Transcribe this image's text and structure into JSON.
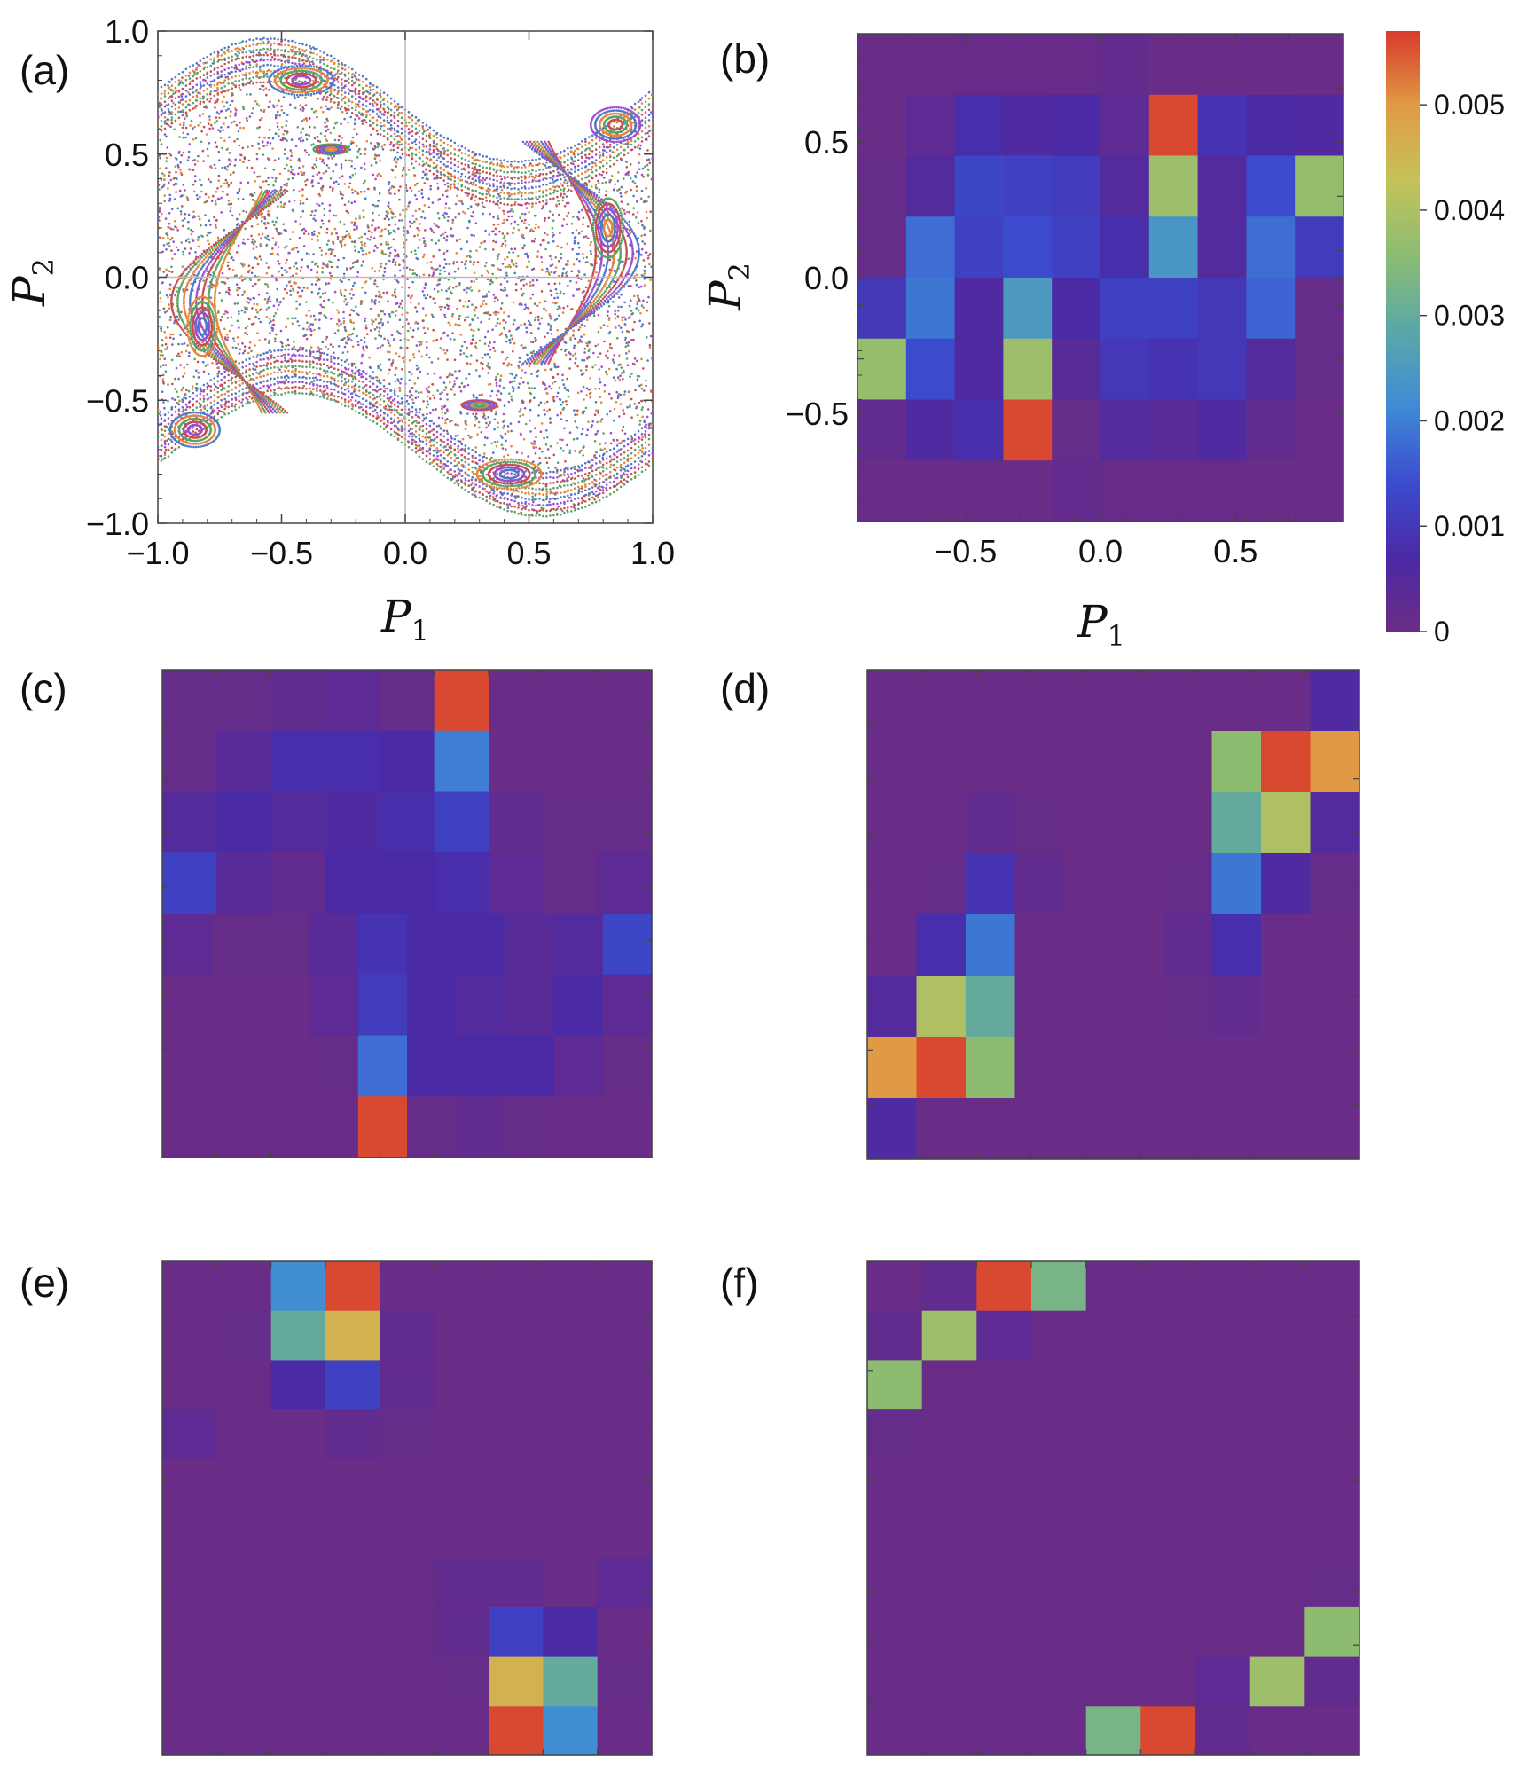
{
  "chart_data": [
    {
      "id": "a",
      "panel_label": "(a)",
      "type": "scatter",
      "title": "",
      "xlabel": "P",
      "xlabel_sub": "1",
      "ylabel": "P",
      "ylabel_sub": "2",
      "xlim": [
        -1,
        1
      ],
      "ylim": [
        -1,
        1
      ],
      "xticks": [
        -1.0,
        -0.5,
        0.0,
        0.5,
        1.0
      ],
      "xtick_labels": [
        "−1.0",
        "−0.5",
        "0.0",
        "0.5",
        "1.0"
      ],
      "yticks": [
        -1.0,
        -0.5,
        0.0,
        0.5,
        1.0
      ],
      "ytick_labels": [
        "−1.0",
        "−0.5",
        "0.0",
        "0.5",
        "1.0"
      ],
      "series_colors": [
        "#4e79c9",
        "#e8863a",
        "#5aa469",
        "#c94f4f",
        "#9b4fd6"
      ],
      "islands": [
        {
          "cx": -0.42,
          "cy": 0.8,
          "rx": 0.13,
          "ry": 0.06
        },
        {
          "cx": 0.42,
          "cy": -0.8,
          "rx": 0.13,
          "ry": 0.06
        },
        {
          "cx": -0.3,
          "cy": 0.52,
          "rx": 0.07,
          "ry": 0.02
        },
        {
          "cx": 0.3,
          "cy": -0.52,
          "rx": 0.07,
          "ry": 0.02
        },
        {
          "cx": 0.85,
          "cy": 0.62,
          "rx": 0.1,
          "ry": 0.07
        },
        {
          "cx": -0.85,
          "cy": -0.62,
          "rx": 0.1,
          "ry": 0.07
        },
        {
          "cx": -0.82,
          "cy": -0.2,
          "rx": 0.06,
          "ry": 0.12
        },
        {
          "cx": 0.82,
          "cy": 0.2,
          "rx": 0.06,
          "ry": 0.12
        }
      ]
    },
    {
      "id": "b",
      "panel_label": "(b)",
      "type": "heatmap",
      "xlabel": "P",
      "xlabel_sub": "1",
      "ylabel": "P",
      "ylabel_sub": "2",
      "xlim": [
        -0.9,
        0.9
      ],
      "ylim": [
        -0.9,
        0.9
      ],
      "xticks": [
        -0.5,
        0.0,
        0.5
      ],
      "xtick_labels": [
        "−0.5",
        "0.0",
        "0.5"
      ],
      "yticks": [
        -0.5,
        0.0,
        0.5
      ],
      "ytick_labels": [
        "−0.5",
        "0.0",
        "0.5"
      ],
      "values_top_to_bottom": [
        [
          5e-05,
          5e-05,
          8e-05,
          8e-05,
          8e-05,
          0.00018,
          5e-05,
          5e-05,
          5e-05,
          5e-05
        ],
        [
          5e-05,
          0.0003,
          0.0008,
          0.0006,
          0.0007,
          0.0003,
          0.0056,
          0.0009,
          0.0007,
          0.0006
        ],
        [
          0.0001,
          0.0005,
          0.0013,
          0.0012,
          0.0011,
          0.0005,
          0.0038,
          0.0005,
          0.0014,
          0.0037
        ],
        [
          0.0001,
          0.0018,
          0.0012,
          0.0014,
          0.0012,
          0.0008,
          0.0024,
          0.0005,
          0.0018,
          0.0011
        ],
        [
          0.001,
          0.0019,
          0.0006,
          0.0025,
          0.0007,
          0.0012,
          0.0012,
          0.001,
          0.0017,
          0.0001
        ],
        [
          0.0037,
          0.0014,
          0.0006,
          0.0038,
          0.0004,
          0.001,
          0.0009,
          0.001,
          0.0005,
          0.0001
        ],
        [
          0.0002,
          0.0006,
          0.0008,
          0.0056,
          0.0001,
          0.0005,
          0.0004,
          0.0006,
          0.0002,
          5e-05
        ],
        [
          5e-05,
          5e-05,
          5e-05,
          5e-05,
          0.00018,
          8e-05,
          8e-05,
          8e-05,
          5e-05,
          5e-05
        ]
      ]
    },
    {
      "id": "c",
      "panel_label": "(c)",
      "type": "heatmap",
      "values_top_to_bottom": [
        [
          0.0001,
          0.0001,
          0.0002,
          0.0003,
          0.0001,
          0.0056,
          5e-05,
          5e-05,
          5e-05
        ],
        [
          0.0001,
          0.0004,
          0.0008,
          0.0008,
          0.0007,
          0.002,
          5e-05,
          5e-05,
          5e-05
        ],
        [
          0.0005,
          0.0007,
          0.0005,
          0.0006,
          0.0008,
          0.0012,
          0.0002,
          0.0001,
          0.0001
        ],
        [
          0.0012,
          0.0004,
          0.0002,
          0.0007,
          0.0007,
          0.0008,
          0.0003,
          0.0001,
          0.0003
        ],
        [
          0.0003,
          0.0001,
          0.0001,
          0.0004,
          0.0009,
          0.0007,
          0.0007,
          0.0004,
          0.0005,
          0.0013
        ],
        [
          5e-05,
          5e-05,
          5e-05,
          0.0003,
          0.0011,
          0.0007,
          0.0005,
          0.0004,
          0.0007,
          0.0003
        ],
        [
          5e-05,
          5e-05,
          5e-05,
          0.0001,
          0.0018,
          0.0007,
          0.0007,
          0.0007,
          0.0003,
          0.0001
        ],
        [
          5e-05,
          5e-05,
          5e-05,
          5e-05,
          0.0056,
          0.0001,
          0.0002,
          0.0001,
          5e-05,
          5e-05
        ]
      ]
    },
    {
      "id": "d",
      "panel_label": "(d)",
      "type": "heatmap",
      "values_top_to_bottom": [
        [
          5e-05,
          5e-05,
          5e-05,
          5e-05,
          5e-05,
          5e-05,
          5e-05,
          5e-05,
          5e-05,
          0.0006
        ],
        [
          5e-05,
          5e-05,
          5e-05,
          5e-05,
          5e-05,
          5e-05,
          5e-05,
          0.0036,
          0.0056,
          0.005
        ],
        [
          5e-05,
          5e-05,
          0.0002,
          0.0001,
          5e-05,
          5e-05,
          5e-05,
          0.003,
          0.004,
          0.0005
        ],
        [
          5e-05,
          0.0001,
          0.0009,
          0.0002,
          5e-05,
          5e-05,
          0.0001,
          0.0019,
          0.0006,
          0.0001
        ],
        [
          5e-05,
          0.0008,
          0.0019,
          5e-05,
          5e-05,
          5e-05,
          0.0002,
          0.0008,
          5e-05,
          5e-05
        ],
        [
          0.0005,
          0.004,
          0.003,
          5e-05,
          5e-05,
          5e-05,
          0.0001,
          0.0002,
          5e-05,
          5e-05
        ],
        [
          0.005,
          0.0056,
          0.0036,
          5e-05,
          5e-05,
          5e-05,
          5e-05,
          5e-05,
          5e-05,
          5e-05
        ],
        [
          0.0006,
          5e-05,
          5e-05,
          5e-05,
          5e-05,
          5e-05,
          5e-05,
          5e-05,
          5e-05,
          5e-05
        ]
      ]
    },
    {
      "id": "e",
      "panel_label": "(e)",
      "type": "heatmap",
      "values_top_to_bottom": [
        [
          5e-05,
          5e-05,
          0.0022,
          0.0056,
          5e-05,
          5e-05,
          5e-05,
          5e-05,
          5e-05
        ],
        [
          5e-05,
          0.0001,
          0.003,
          0.0046,
          0.0002,
          5e-05,
          5e-05,
          5e-05,
          5e-05
        ],
        [
          5e-05,
          5e-05,
          0.0007,
          0.0012,
          0.0002,
          5e-05,
          5e-05,
          5e-05,
          5e-05
        ],
        [
          0.0003,
          5e-05,
          5e-05,
          0.0002,
          0.0001,
          5e-05,
          5e-05,
          5e-05,
          5e-05
        ],
        [
          5e-05,
          5e-05,
          5e-05,
          5e-05,
          5e-05,
          5e-05,
          5e-05,
          5e-05,
          5e-05
        ],
        [
          5e-05,
          5e-05,
          5e-05,
          5e-05,
          5e-05,
          5e-05,
          5e-05,
          5e-05,
          5e-05
        ],
        [
          5e-05,
          5e-05,
          5e-05,
          5e-05,
          5e-05,
          0.0002,
          0.0002,
          5e-05,
          0.0003
        ],
        [
          5e-05,
          5e-05,
          5e-05,
          5e-05,
          5e-05,
          0.0002,
          0.0012,
          0.0007,
          5e-05
        ],
        [
          5e-05,
          5e-05,
          5e-05,
          5e-05,
          5e-05,
          0.0001,
          0.0046,
          0.003,
          0.0001
        ],
        [
          5e-05,
          5e-05,
          5e-05,
          5e-05,
          5e-05,
          5e-05,
          0.0056,
          0.0022,
          5e-05
        ]
      ]
    },
    {
      "id": "f",
      "panel_label": "(f)",
      "type": "heatmap",
      "values_top_to_bottom": [
        [
          5e-05,
          0.0002,
          0.0056,
          0.0033,
          5e-05,
          5e-05,
          5e-05,
          5e-05,
          5e-05
        ],
        [
          0.0002,
          0.0038,
          0.0003,
          5e-05,
          5e-05,
          5e-05,
          5e-05,
          5e-05,
          5e-05
        ],
        [
          0.0036,
          5e-05,
          5e-05,
          5e-05,
          5e-05,
          5e-05,
          5e-05,
          5e-05,
          5e-05
        ],
        [
          0.0001,
          5e-05,
          5e-05,
          5e-05,
          5e-05,
          5e-05,
          5e-05,
          5e-05,
          5e-05
        ],
        [
          5e-05,
          5e-05,
          5e-05,
          5e-05,
          5e-05,
          5e-05,
          5e-05,
          5e-05,
          5e-05
        ],
        [
          5e-05,
          5e-05,
          5e-05,
          5e-05,
          5e-05,
          5e-05,
          5e-05,
          5e-05,
          5e-05
        ],
        [
          5e-05,
          5e-05,
          5e-05,
          5e-05,
          5e-05,
          5e-05,
          5e-05,
          5e-05,
          0.0001
        ],
        [
          5e-05,
          5e-05,
          5e-05,
          5e-05,
          5e-05,
          5e-05,
          5e-05,
          5e-05,
          0.0036
        ],
        [
          5e-05,
          5e-05,
          5e-05,
          5e-05,
          5e-05,
          5e-05,
          0.0003,
          0.0038,
          0.0002
        ],
        [
          5e-05,
          5e-05,
          5e-05,
          5e-05,
          0.0033,
          0.0056,
          0.0002,
          5e-05,
          5e-05
        ]
      ]
    }
  ],
  "colorbar": {
    "min": 0,
    "max": 0.0057,
    "ticks": [
      0,
      0.001,
      0.002,
      0.003,
      0.004,
      0.005
    ],
    "tick_labels": [
      "0",
      "0.001",
      "0.002",
      "0.003",
      "0.004",
      "0.005"
    ],
    "colors": [
      "#6b2c85",
      "#4a2aa6",
      "#3c4ccf",
      "#3f8bd6",
      "#5aa7a8",
      "#8abc72",
      "#c4c35a",
      "#e09b45",
      "#d83a2c"
    ]
  }
}
